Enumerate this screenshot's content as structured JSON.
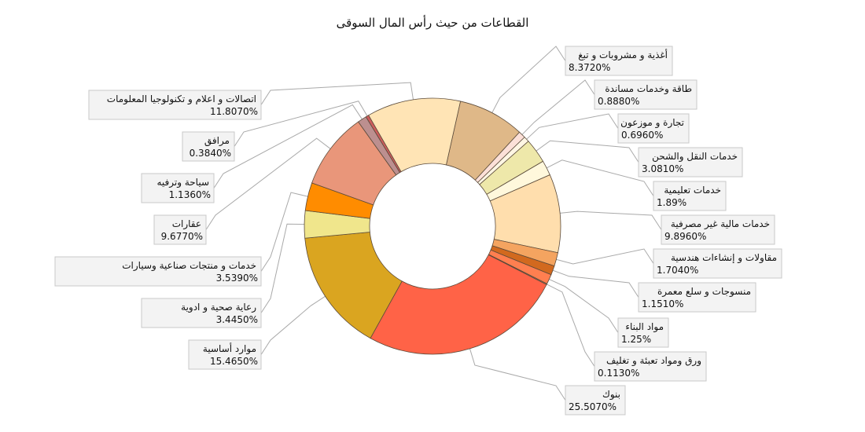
{
  "chart_data": {
    "type": "pie",
    "donut": true,
    "title": "القطاعات من حيث رأس المال السوقى",
    "slices": [
      {
        "name": "أغذية و مشروبات و تبغ",
        "value": 8.372,
        "display": "8.3720%",
        "color": "#DFB888"
      },
      {
        "name": "طاقة وخدمات مساندة",
        "value": 0.888,
        "display": "0.8880%",
        "color": "#FCE0D8"
      },
      {
        "name": "تجارة و موزعون",
        "value": 0.696,
        "display": "0.6960%",
        "color": "#FFF6E4"
      },
      {
        "name": "خدمات النقل والشحن",
        "value": 3.081,
        "display": "3.0810%",
        "color": "#EEE8AA"
      },
      {
        "name": "خدمات تعليمية",
        "value": 1.89,
        "display": "1.89%",
        "color": "#FFF8DC"
      },
      {
        "name": "خدمات مالية غير مصرفية",
        "value": 9.896,
        "display": "9.8960%",
        "color": "#FFDEAD"
      },
      {
        "name": "مقاولات و إنشاءات هندسية",
        "value": 1.704,
        "display": "1.7040%",
        "color": "#F4A460"
      },
      {
        "name": "منسوجات و سلع معمرة",
        "value": 1.151,
        "display": "1.1510%",
        "color": "#D2691E"
      },
      {
        "name": "مواد البناء",
        "value": 1.25,
        "display": "1.25%",
        "color": "#FF7F50"
      },
      {
        "name": "ورق ومواد تعبئة و تغليف",
        "value": 0.113,
        "display": "0.1130%",
        "color": "#E9967A"
      },
      {
        "name": "بنوك",
        "value": 25.507,
        "display": "25.5070%",
        "color": "#FF6347"
      },
      {
        "name": "موارد أساسية",
        "value": 15.465,
        "display": "15.4650%",
        "color": "#DAA520"
      },
      {
        "name": "رعاية صحية و ادوية",
        "value": 3.445,
        "display": "3.4450%",
        "color": "#F0E68C"
      },
      {
        "name": "خدمات و منتجات صناعية وسيارات",
        "value": 3.539,
        "display": "3.5390%",
        "color": "#FF8C00"
      },
      {
        "name": "عقارات",
        "value": 9.677,
        "display": "9.6770%",
        "color": "#E9967A"
      },
      {
        "name": "سياحة وترفيه",
        "value": 1.136,
        "display": "1.1360%",
        "color": "#BC8F8F"
      },
      {
        "name": "مرافق",
        "value": 0.384,
        "display": "0.3840%",
        "color": "#CD5C5C"
      },
      {
        "name": "اتصالات و  اعلام و تكنولوجيا المعلومات",
        "value": 11.807,
        "display": "11.8070%",
        "color": "#FFE4B5"
      }
    ]
  }
}
